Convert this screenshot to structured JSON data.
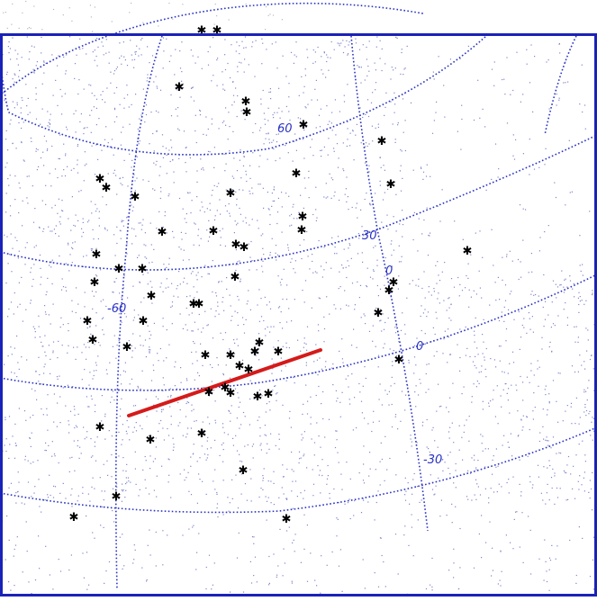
{
  "map": {
    "projection": "all-sky grid",
    "colors": {
      "background": "#ffffff",
      "frame": "#1a22b8",
      "grid": "#2a33c4",
      "grid_label": "#2a33c4",
      "background_stars": "#7f86c9",
      "catalog_objects": "#000000",
      "track": "#d51a1a"
    },
    "grid_labels": [
      "60",
      "30",
      "0",
      "-60",
      "0",
      "-30"
    ],
    "marker_icon": "asterisk",
    "track_present": true
  }
}
